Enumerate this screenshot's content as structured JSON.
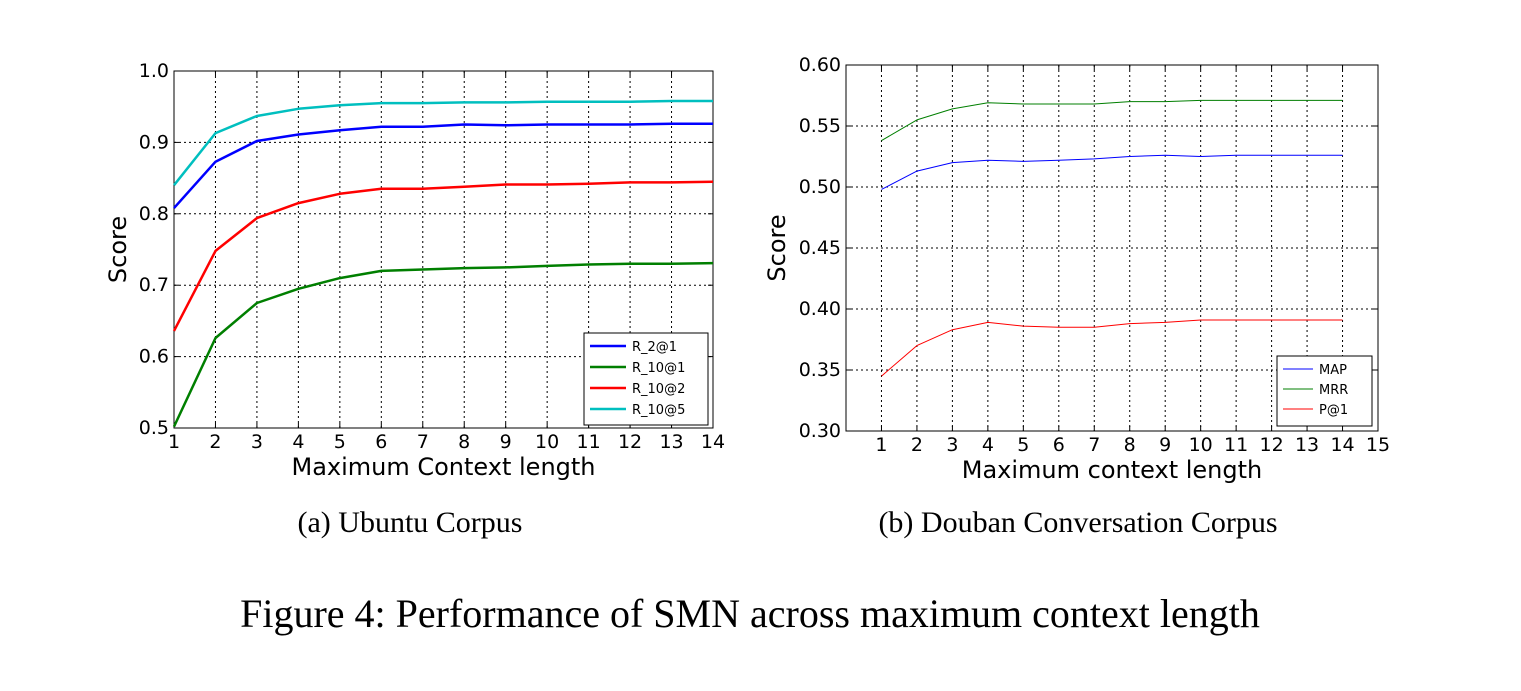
{
  "chart_data": [
    {
      "type": "line",
      "subcaption": "(a)  Ubuntu Corpus",
      "xlabel": "Maximum Context length",
      "ylabel": "Score",
      "xlim": [
        1,
        14
      ],
      "ylim": [
        0.5,
        1.0
      ],
      "x_ticks": [
        1,
        2,
        3,
        4,
        5,
        6,
        7,
        8,
        9,
        10,
        11,
        12,
        13,
        14
      ],
      "y_ticks": [
        0.5,
        0.6,
        0.7,
        0.8,
        0.9,
        1.0
      ],
      "y_tick_labels": [
        "0.5",
        "0.6",
        "0.7",
        "0.8",
        "0.9",
        "1.0"
      ],
      "grid": true,
      "legend_position": "lower-right",
      "x": [
        1,
        2,
        3,
        4,
        5,
        6,
        7,
        8,
        9,
        10,
        11,
        12,
        13,
        14
      ],
      "series": [
        {
          "name": "R_2@1",
          "color": "#0000ff",
          "values": [
            0.808,
            0.873,
            0.902,
            0.911,
            0.917,
            0.922,
            0.922,
            0.925,
            0.924,
            0.925,
            0.925,
            0.925,
            0.926,
            0.926
          ]
        },
        {
          "name": "R_10@1",
          "color": "#007f00",
          "values": [
            0.502,
            0.626,
            0.675,
            0.695,
            0.71,
            0.72,
            0.722,
            0.724,
            0.725,
            0.727,
            0.729,
            0.73,
            0.73,
            0.731
          ]
        },
        {
          "name": "R_10@2",
          "color": "#ff0000",
          "values": [
            0.636,
            0.748,
            0.794,
            0.815,
            0.828,
            0.835,
            0.835,
            0.838,
            0.841,
            0.841,
            0.842,
            0.844,
            0.844,
            0.845
          ]
        },
        {
          "name": "R_10@5",
          "color": "#00bfbf",
          "values": [
            0.84,
            0.913,
            0.937,
            0.947,
            0.952,
            0.955,
            0.955,
            0.956,
            0.956,
            0.957,
            0.957,
            0.957,
            0.958,
            0.958
          ]
        }
      ]
    },
    {
      "type": "line",
      "subcaption": "(b)  Douban Conversation Corpus",
      "xlabel": "Maximum context length",
      "ylabel": "Score",
      "xlim": [
        0,
        15
      ],
      "ylim": [
        0.3,
        0.6
      ],
      "x_ticks": [
        1,
        2,
        3,
        4,
        5,
        6,
        7,
        8,
        9,
        10,
        11,
        12,
        13,
        14,
        15
      ],
      "y_ticks": [
        0.3,
        0.35,
        0.4,
        0.45,
        0.5,
        0.55,
        0.6
      ],
      "y_tick_labels": [
        "0.30",
        "0.35",
        "0.40",
        "0.45",
        "0.50",
        "0.55",
        "0.60"
      ],
      "grid": true,
      "legend_position": "lower-right",
      "x": [
        1,
        2,
        3,
        4,
        5,
        6,
        7,
        8,
        9,
        10,
        11,
        12,
        13,
        14
      ],
      "series": [
        {
          "name": "MAP",
          "color": "#0000ff",
          "values": [
            0.498,
            0.513,
            0.52,
            0.522,
            0.521,
            0.522,
            0.523,
            0.525,
            0.526,
            0.525,
            0.526,
            0.526,
            0.526,
            0.526
          ]
        },
        {
          "name": "MRR",
          "color": "#007f00",
          "values": [
            0.538,
            0.555,
            0.564,
            0.569,
            0.568,
            0.568,
            0.568,
            0.57,
            0.57,
            0.571,
            0.571,
            0.571,
            0.571,
            0.571
          ]
        },
        {
          "name": "P@1",
          "color": "#ff0000",
          "values": [
            0.345,
            0.37,
            0.383,
            0.389,
            0.386,
            0.385,
            0.385,
            0.388,
            0.389,
            0.391,
            0.391,
            0.391,
            0.391,
            0.391
          ]
        }
      ]
    }
  ],
  "figure_caption": "Figure 4: Performance of SMN across maximum context length"
}
